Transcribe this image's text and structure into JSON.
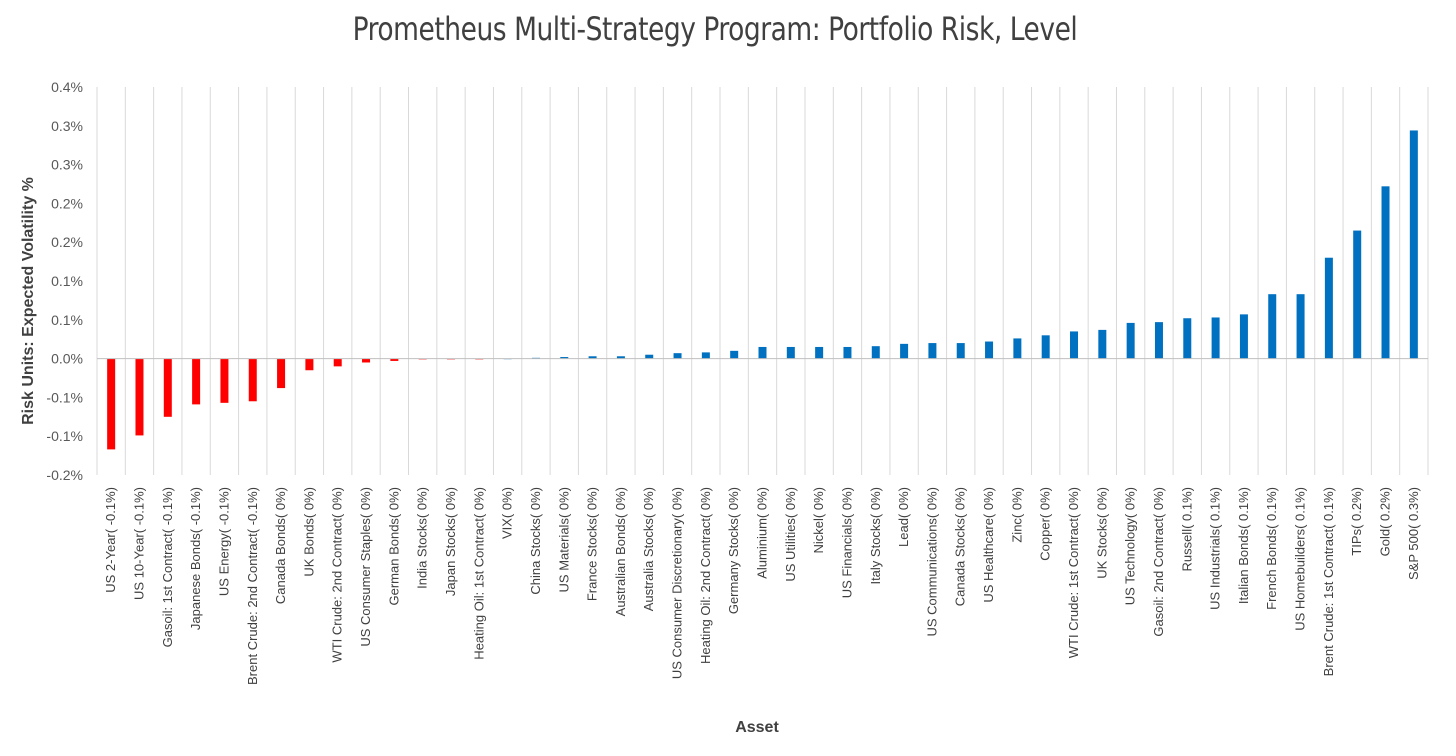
{
  "chart_data": {
    "type": "bar",
    "title": "Prometheus Multi-Strategy Program: Portfolio Risk, Level",
    "xlabel": "Asset",
    "ylabel": "Risk Units: Expected Volatility %",
    "ylim": [
      -0.15,
      0.35
    ],
    "yticks": [
      {
        "value": 0.35,
        "label": "0.4%"
      },
      {
        "value": 0.3,
        "label": "0.3%"
      },
      {
        "value": 0.25,
        "label": "0.3%"
      },
      {
        "value": 0.2,
        "label": "0.2%"
      },
      {
        "value": 0.15,
        "label": "0.2%"
      },
      {
        "value": 0.1,
        "label": "0.1%"
      },
      {
        "value": 0.05,
        "label": "0.1%"
      },
      {
        "value": 0.0,
        "label": "0.0%"
      },
      {
        "value": -0.05,
        "label": "-0.1%"
      },
      {
        "value": -0.1,
        "label": "-0.1%"
      },
      {
        "value": -0.15,
        "label": "-0.2%"
      }
    ],
    "grid": "vertical",
    "colors": {
      "negative": "#ff0000",
      "positive": "#0070c0",
      "grid": "#d9d9d9",
      "axis": "#bfbfbf"
    },
    "categories": [
      "US 2-Year( -0.1%)",
      "US 10-Year( -0.1%)",
      "Gasoil: 1st Contract( -0.1%)",
      "Japanese Bonds( -0.1%)",
      "US Energy( -0.1%)",
      "Brent Crude: 2nd Contract( -0.1%)",
      "Canada Bonds( 0%)",
      "UK Bonds( 0%)",
      "WTI Crude: 2nd Contract( 0%)",
      "US Consumer Staples( 0%)",
      "German Bonds( 0%)",
      "India Stocks( 0%)",
      "Japan Stocks( 0%)",
      "Heating Oil: 1st Contract( 0%)",
      "VIX( 0%)",
      "China Stocks( 0%)",
      "US Materials( 0%)",
      "France Stocks( 0%)",
      "Australian Bonds( 0%)",
      "Australia Stocks( 0%)",
      "US Consumer Discretionary( 0%)",
      "Heating Oil: 2nd Contract( 0%)",
      "Germany Stocks( 0%)",
      "Aluminium( 0%)",
      "US Utilities( 0%)",
      "Nickel( 0%)",
      "US Financials( 0%)",
      "Italy Stocks( 0%)",
      "Lead( 0%)",
      "US Communications( 0%)",
      "Canada Stocks( 0%)",
      "US Healthcare( 0%)",
      "Zinc( 0%)",
      "Copper( 0%)",
      "WTI Crude: 1st Contract( 0%)",
      "UK Stocks( 0%)",
      "US Technology( 0%)",
      "Gasoil: 2nd Contract( 0%)",
      "Russell( 0.1%)",
      "US Industrials( 0.1%)",
      "Italian Bonds( 0.1%)",
      "French Bonds( 0.1%)",
      "US Homebuilders( 0.1%)",
      "Brent Crude: 1st Contract( 0.1%)",
      "TIPs( 0.2%)",
      "Gold( 0.2%)",
      "S&P 500( 0.3%)"
    ],
    "values": [
      -0.117,
      -0.099,
      -0.075,
      -0.059,
      -0.057,
      -0.055,
      -0.038,
      -0.015,
      -0.01,
      -0.005,
      -0.003,
      -0.001,
      -0.001,
      -0.001,
      0.0,
      0.001,
      0.002,
      0.003,
      0.003,
      0.005,
      0.007,
      0.008,
      0.01,
      0.015,
      0.015,
      0.015,
      0.015,
      0.016,
      0.019,
      0.02,
      0.02,
      0.022,
      0.026,
      0.03,
      0.035,
      0.037,
      0.046,
      0.047,
      0.052,
      0.053,
      0.057,
      0.083,
      0.083,
      0.13,
      0.165,
      0.222,
      0.294
    ]
  }
}
